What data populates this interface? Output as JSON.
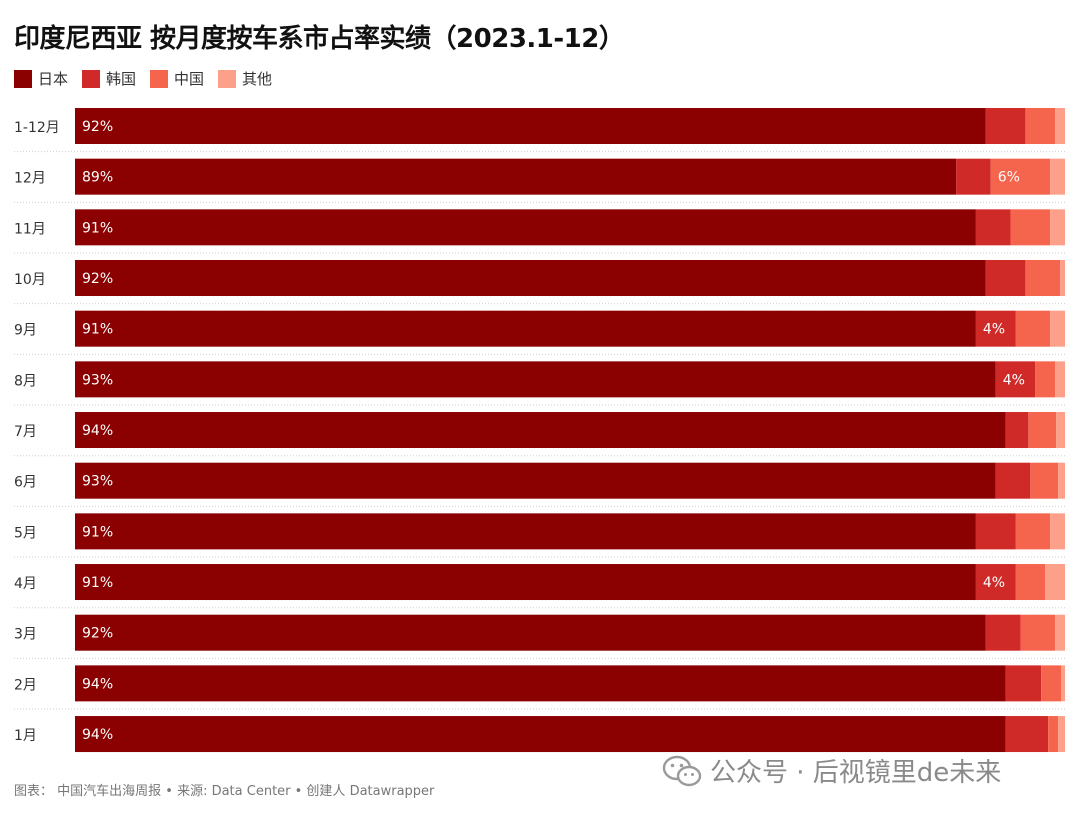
{
  "title": "印度尼西亚 按月度按车系市占率实绩（2023.1-12）",
  "legend": [
    {
      "label": "日本",
      "color": "#8b0000"
    },
    {
      "label": "韩国",
      "color": "#d02a28"
    },
    {
      "label": "中国",
      "color": "#f5644d"
    },
    {
      "label": "其他",
      "color": "#fca08a"
    }
  ],
  "footer": "图表： 中国汽车出海周报 • 来源: Data Center • 创建人 Datawrapper",
  "watermark": {
    "text": "公众号 · 后视镜里de未来",
    "icon": "wechat-icon"
  },
  "chart_data": {
    "type": "bar",
    "orientation": "horizontal",
    "stacked": true,
    "normalized": true,
    "categories": [
      "1-12月",
      "12月",
      "11月",
      "10月",
      "9月",
      "8月",
      "7月",
      "6月",
      "5月",
      "4月",
      "3月",
      "2月",
      "1月"
    ],
    "series": [
      {
        "name": "日本",
        "color": "#8b0000",
        "values": [
          92,
          89,
          91,
          92,
          91,
          93,
          94,
          93,
          91,
          91,
          92,
          94,
          94
        ]
      },
      {
        "name": "韩国",
        "color": "#d02a28",
        "values": [
          4,
          3.5,
          3.5,
          4,
          4,
          4,
          2.3,
          3.5,
          4,
          4,
          3.5,
          3.6,
          4.3
        ]
      },
      {
        "name": "中国",
        "color": "#f5644d",
        "values": [
          3,
          6,
          4,
          3.5,
          3.5,
          2,
          2.8,
          2.8,
          3.5,
          3,
          3.5,
          2,
          1
        ]
      },
      {
        "name": "其他",
        "color": "#fca08a",
        "values": [
          1,
          1.5,
          1.5,
          0.5,
          1.5,
          1,
          0.9,
          0.7,
          1.5,
          2,
          1,
          0.4,
          0.7
        ]
      }
    ],
    "data_labels": [
      {
        "category": "1-12月",
        "series": "日本",
        "text": "92%"
      },
      {
        "category": "12月",
        "series": "日本",
        "text": "89%"
      },
      {
        "category": "12月",
        "series": "中国",
        "text": "6%"
      },
      {
        "category": "11月",
        "series": "日本",
        "text": "91%"
      },
      {
        "category": "10月",
        "series": "日本",
        "text": "92%"
      },
      {
        "category": "9月",
        "series": "日本",
        "text": "91%"
      },
      {
        "category": "9月",
        "series": "韩国",
        "text": "4%"
      },
      {
        "category": "8月",
        "series": "日本",
        "text": "93%"
      },
      {
        "category": "8月",
        "series": "韩国",
        "text": "4%"
      },
      {
        "category": "7月",
        "series": "日本",
        "text": "94%"
      },
      {
        "category": "6月",
        "series": "日本",
        "text": "93%"
      },
      {
        "category": "5月",
        "series": "日本",
        "text": "91%"
      },
      {
        "category": "4月",
        "series": "日本",
        "text": "91%"
      },
      {
        "category": "4月",
        "series": "韩国",
        "text": "4%"
      },
      {
        "category": "3月",
        "series": "日本",
        "text": "92%"
      },
      {
        "category": "2月",
        "series": "日本",
        "text": "94%"
      },
      {
        "category": "1月",
        "series": "日本",
        "text": "94%"
      }
    ],
    "xlim": [
      0,
      100
    ],
    "legend_position": "top-left",
    "grid": false
  }
}
